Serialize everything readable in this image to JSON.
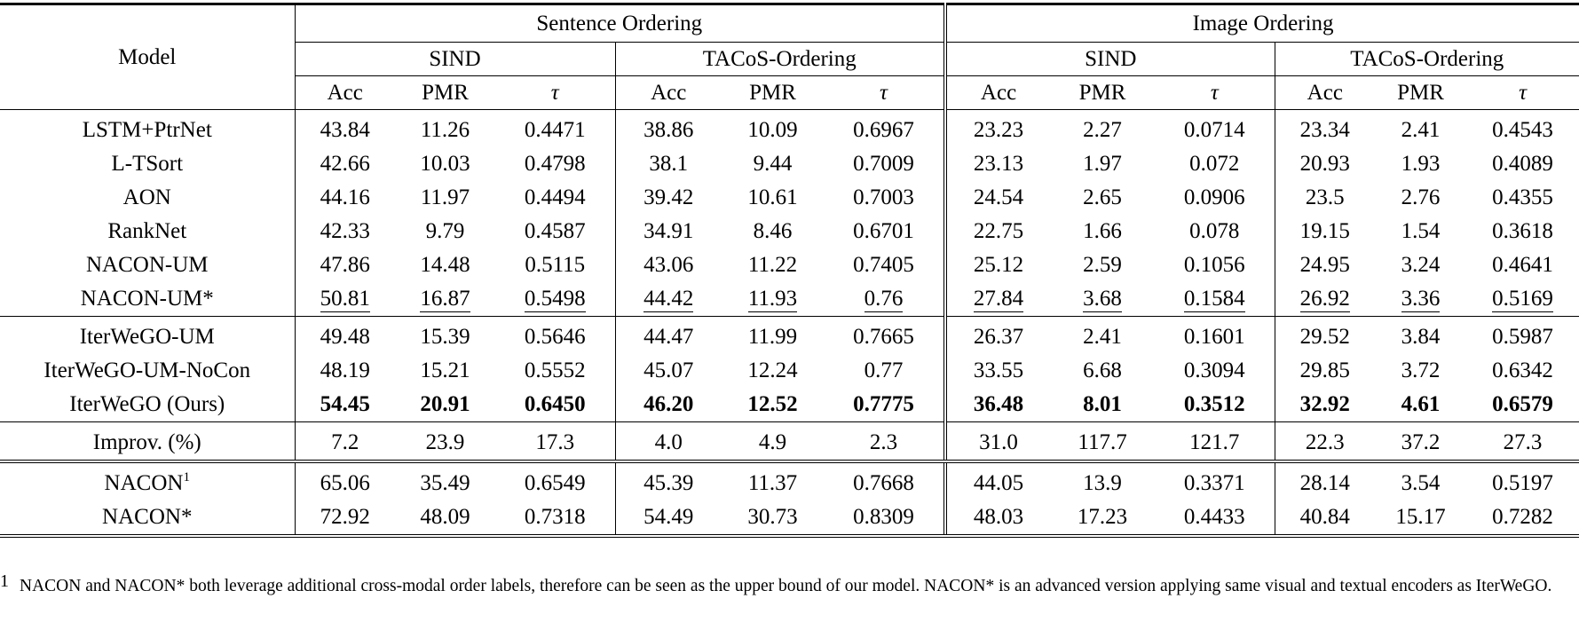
{
  "table": {
    "model_header": "Model",
    "groups": [
      {
        "label": "Sentence Ordering",
        "datasets": [
          "SIND",
          "TACoS-Ordering"
        ]
      },
      {
        "label": "Image Ordering",
        "datasets": [
          "SIND",
          "TACoS-Ordering"
        ]
      }
    ],
    "metrics": [
      "Acc",
      "PMR",
      "τ"
    ],
    "sections": [
      {
        "name": "baselines",
        "rows": [
          {
            "model": "LSTM+PtrNet",
            "values": [
              "43.84",
              "11.26",
              "0.4471",
              "38.86",
              "10.09",
              "0.6967",
              "23.23",
              "2.27",
              "0.0714",
              "23.34",
              "2.41",
              "0.4543"
            ]
          },
          {
            "model": "L-TSort",
            "values": [
              "42.66",
              "10.03",
              "0.4798",
              "38.1",
              "9.44",
              "0.7009",
              "23.13",
              "1.97",
              "0.072",
              "20.93",
              "1.93",
              "0.4089"
            ]
          },
          {
            "model": "AON",
            "values": [
              "44.16",
              "11.97",
              "0.4494",
              "39.42",
              "10.61",
              "0.7003",
              "24.54",
              "2.65",
              "0.0906",
              "23.5",
              "2.76",
              "0.4355"
            ]
          },
          {
            "model": "RankNet",
            "values": [
              "42.33",
              "9.79",
              "0.4587",
              "34.91",
              "8.46",
              "0.6701",
              "22.75",
              "1.66",
              "0.078",
              "19.15",
              "1.54",
              "0.3618"
            ]
          },
          {
            "model": "NACON-UM",
            "values": [
              "47.86",
              "14.48",
              "0.5115",
              "43.06",
              "11.22",
              "0.7405",
              "25.12",
              "2.59",
              "0.1056",
              "24.95",
              "3.24",
              "0.4641"
            ]
          },
          {
            "model": "NACON-UM*",
            "underline": true,
            "values": [
              "50.81",
              "16.87",
              "0.5498",
              "44.42",
              "11.93",
              "0.76",
              "27.84",
              "3.68",
              "0.1584",
              "26.92",
              "3.36",
              "0.5169"
            ]
          }
        ]
      },
      {
        "name": "ours",
        "rows": [
          {
            "model": "IterWeGO-UM",
            "values": [
              "49.48",
              "15.39",
              "0.5646",
              "44.47",
              "11.99",
              "0.7665",
              "26.37",
              "2.41",
              "0.1601",
              "29.52",
              "3.84",
              "0.5987"
            ]
          },
          {
            "model": "IterWeGO-UM-NoCon",
            "values": [
              "48.19",
              "15.21",
              "0.5552",
              "45.07",
              "12.24",
              "0.77",
              "33.55",
              "6.68",
              "0.3094",
              "29.85",
              "3.72",
              "0.6342"
            ]
          },
          {
            "model": "IterWeGO (Ours)",
            "bold": true,
            "values": [
              "54.45",
              "20.91",
              "0.6450",
              "46.20",
              "12.52",
              "0.7775",
              "36.48",
              "8.01",
              "0.3512",
              "32.92",
              "4.61",
              "0.6579"
            ]
          }
        ]
      },
      {
        "name": "improvement",
        "rows": [
          {
            "model": "Improv. (%)",
            "values": [
              "7.2",
              "23.9",
              "17.3",
              "4.0",
              "4.9",
              "2.3",
              "31.0",
              "117.7",
              "121.7",
              "22.3",
              "37.2",
              "27.3"
            ]
          }
        ]
      },
      {
        "name": "upper-bound",
        "rows": [
          {
            "model": "NACON",
            "sup": "1",
            "values": [
              "65.06",
              "35.49",
              "0.6549",
              "45.39",
              "11.37",
              "0.7668",
              "44.05",
              "13.9",
              "0.3371",
              "28.14",
              "3.54",
              "0.5197"
            ]
          },
          {
            "model": "NACON*",
            "values": [
              "72.92",
              "48.09",
              "0.7318",
              "54.49",
              "30.73",
              "0.8309",
              "48.03",
              "17.23",
              "0.4433",
              "40.84",
              "15.17",
              "0.7282"
            ]
          }
        ]
      }
    ]
  },
  "footnote": {
    "mark": "1",
    "text": "NACON and NACON* both leverage additional cross-modal order labels, therefore can be seen as the upper bound of our model. NACON* is an advanced version applying same visual and textual encoders as IterWeGO."
  }
}
